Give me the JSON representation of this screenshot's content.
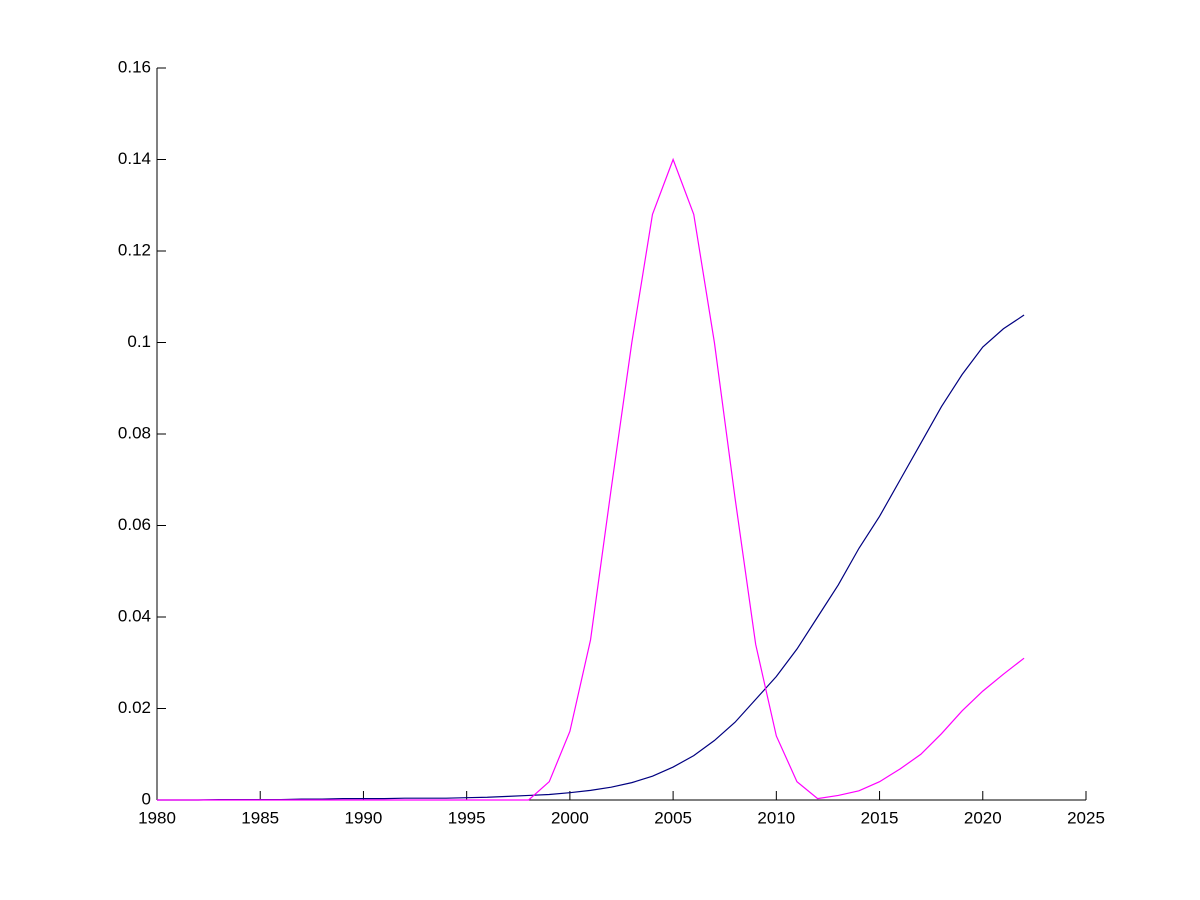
{
  "chart_data": {
    "type": "line",
    "x": [
      1980,
      1981,
      1982,
      1983,
      1984,
      1985,
      1986,
      1987,
      1988,
      1989,
      1990,
      1991,
      1992,
      1993,
      1994,
      1995,
      1996,
      1997,
      1998,
      1999,
      2000,
      2001,
      2002,
      2003,
      2004,
      2005,
      2006,
      2007,
      2008,
      2009,
      2010,
      2011,
      2012,
      2013,
      2014,
      2015,
      2016,
      2017,
      2018,
      2019,
      2020,
      2021,
      2022
    ],
    "series": [
      {
        "color": "#000080",
        "values": [
          0,
          0,
          0,
          0.0001,
          0.0001,
          0.0001,
          0.0001,
          0.0002,
          0.0002,
          0.0003,
          0.0003,
          0.0003,
          0.0004,
          0.0004,
          0.0004,
          0.0005,
          0.0006,
          0.0008,
          0.001,
          0.0012,
          0.0016,
          0.0021,
          0.0028,
          0.0038,
          0.0052,
          0.0072,
          0.0097,
          0.013,
          0.017,
          0.022,
          0.027,
          0.033,
          0.04,
          0.047,
          0.055,
          0.062,
          0.07,
          0.078,
          0.086,
          0.093,
          0.099,
          0.103,
          0.106
        ]
      },
      {
        "color": "#ff00ff",
        "values": [
          0,
          0,
          0,
          0,
          0,
          0,
          0,
          0,
          0,
          0,
          0,
          0,
          0,
          0,
          0,
          0,
          0,
          0,
          0,
          0.004,
          0.015,
          0.035,
          0.068,
          0.1,
          0.128,
          0.14,
          0.128,
          0.1,
          0.066,
          0.034,
          0.014,
          0.004,
          0.0003,
          0.001,
          0.002,
          0.004,
          0.0068,
          0.01,
          0.0145,
          0.0195,
          0.0238,
          0.0275,
          0.031
        ]
      }
    ],
    "xlim": [
      1980,
      2025
    ],
    "xticks": [
      1980,
      1985,
      1990,
      1995,
      2000,
      2005,
      2010,
      2015,
      2020,
      2025
    ],
    "ylim": [
      0,
      0.16
    ],
    "yticks": [
      0,
      0.02,
      0.04,
      0.06,
      0.08,
      0.1,
      0.12,
      0.14,
      0.16
    ]
  }
}
